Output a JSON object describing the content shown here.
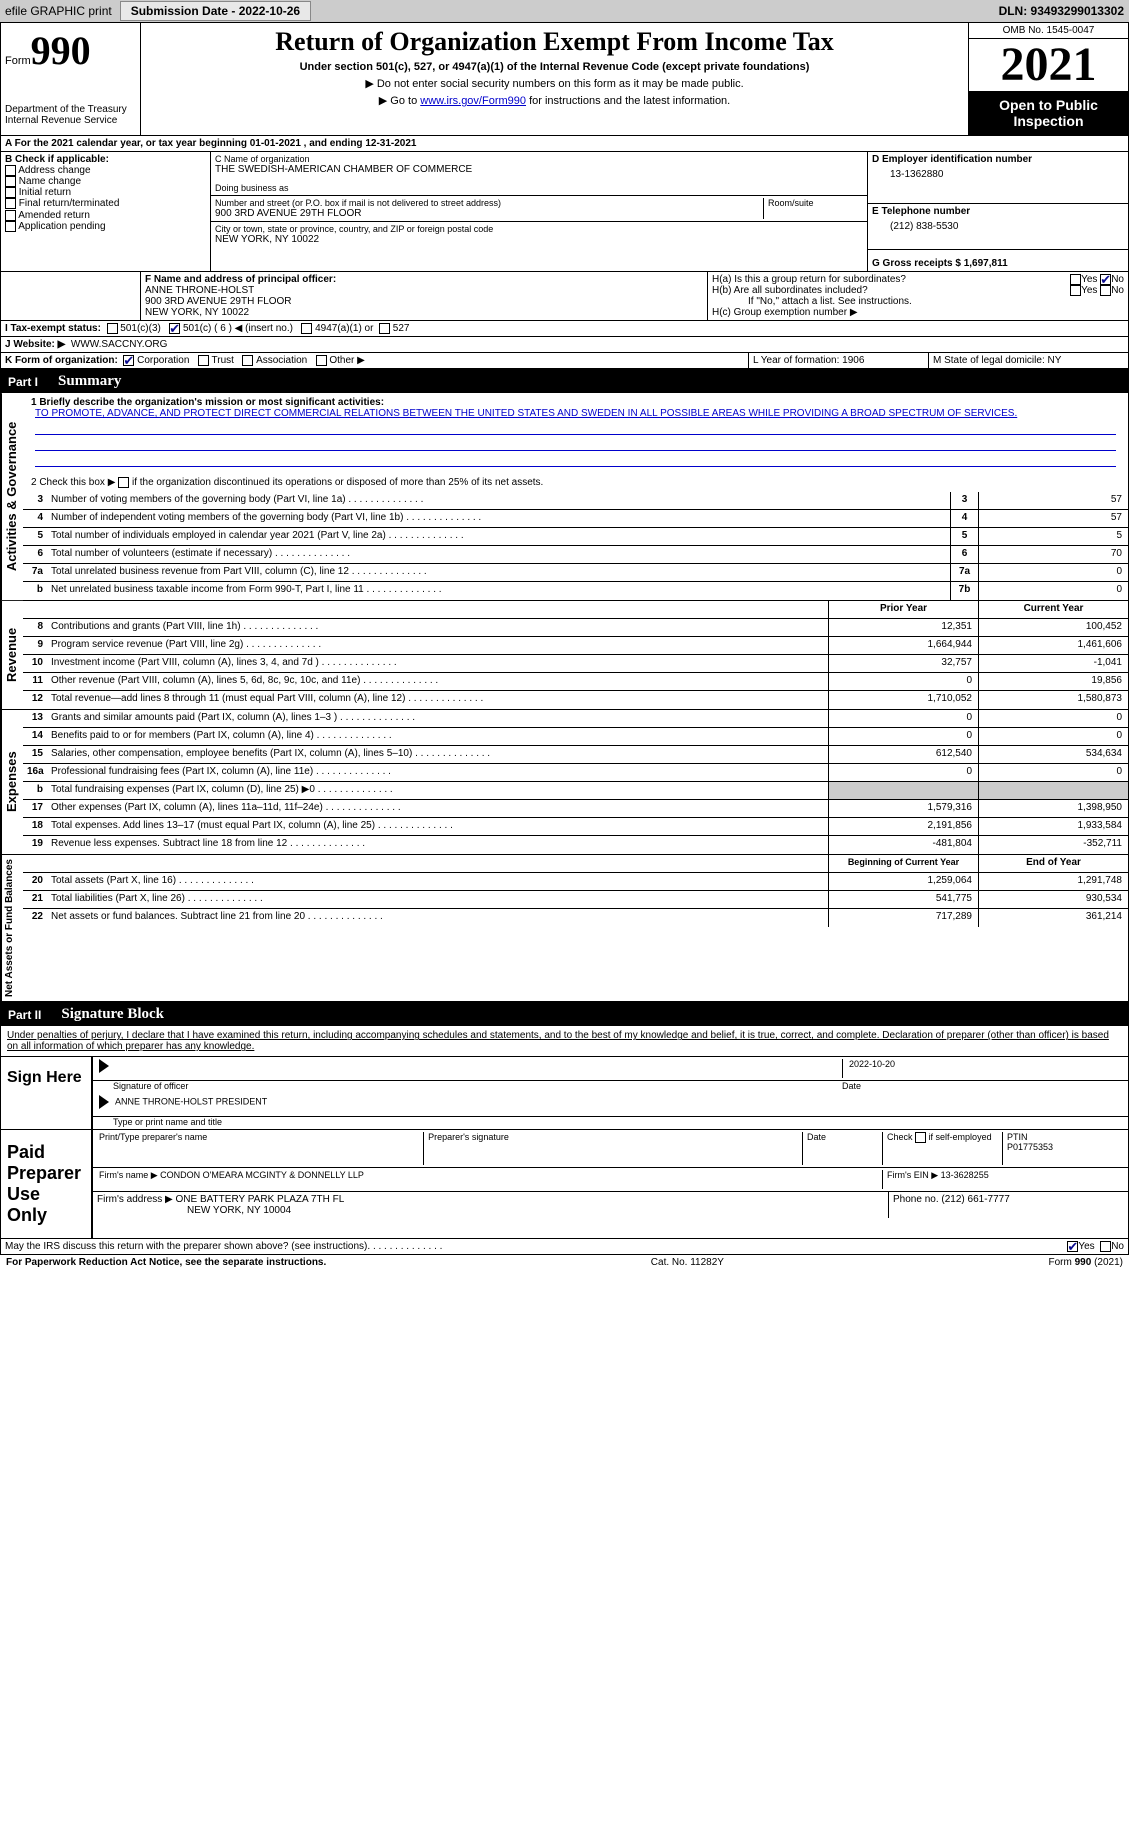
{
  "topbar": {
    "efile_label": "efile GRAPHIC print",
    "submission_label": "Submission Date - 2022-10-26",
    "dln_label": "DLN: 93493299013302"
  },
  "header": {
    "form_word": "Form",
    "form_num": "990",
    "dept": "Department of the Treasury Internal Revenue Service",
    "title": "Return of Organization Exempt From Income Tax",
    "subtitle": "Under section 501(c), 527, or 4947(a)(1) of the Internal Revenue Code (except private foundations)",
    "note1": "▶ Do not enter social security numbers on this form as it may be made public.",
    "note2_pre": "▶ Go to ",
    "note2_link": "www.irs.gov/Form990",
    "note2_post": " for instructions and the latest information.",
    "omb": "OMB No. 1545-0047",
    "year": "2021",
    "inspect": "Open to Public Inspection"
  },
  "line_a": {
    "text": "A For the 2021 calendar year, or tax year beginning 01-01-2021    , and ending 12-31-2021"
  },
  "box_b": {
    "title": "B Check if applicable:",
    "opts": [
      "Address change",
      "Name change",
      "Initial return",
      "Final return/terminated",
      "Amended return",
      "Application pending"
    ]
  },
  "box_c": {
    "name_label": "C Name of organization",
    "name": "THE SWEDISH-AMERICAN CHAMBER OF COMMERCE",
    "dba_label": "Doing business as",
    "addr_label": "Number and street (or P.O. box if mail is not delivered to street address)",
    "addr": "900 3RD AVENUE 29TH FLOOR",
    "room_label": "Room/suite",
    "city_label": "City or town, state or province, country, and ZIP or foreign postal code",
    "city": "NEW YORK, NY  10022"
  },
  "box_d": {
    "label": "D Employer identification number",
    "value": "13-1362880"
  },
  "box_e": {
    "label": "E Telephone number",
    "value": "(212) 838-5530"
  },
  "box_g": {
    "label": "G Gross receipts $ 1,697,811"
  },
  "box_f": {
    "label": "F  Name and address of principal officer:",
    "lines": [
      "ANNE THRONE-HOLST",
      "900 3RD AVENUE 29TH FLOOR",
      "NEW YORK, NY  10022"
    ]
  },
  "box_h": {
    "a_label": "H(a)  Is this a group return for subordinates?",
    "b_label": "H(b)  Are all subordinates included?",
    "b_note": "If \"No,\" attach a list. See instructions.",
    "c_label": "H(c)  Group exemption number ▶",
    "yes": "Yes",
    "no": "No"
  },
  "line_i": {
    "label": "I    Tax-exempt status:",
    "o1": "501(c)(3)",
    "o2": "501(c) ( 6 ) ◀ (insert no.)",
    "o3": "4947(a)(1) or",
    "o4": "527"
  },
  "line_j": {
    "label": "J   Website: ▶",
    "value": "WWW.SACCNY.ORG"
  },
  "line_k": {
    "label": "K Form of organization:",
    "o1": "Corporation",
    "o2": "Trust",
    "o3": "Association",
    "o4": "Other ▶"
  },
  "line_l": {
    "label": "L Year of formation: 1906"
  },
  "line_m": {
    "label": "M State of legal domicile: NY"
  },
  "parts": {
    "p1": {
      "num": "Part I",
      "title": "Summary"
    },
    "p2": {
      "num": "Part II",
      "title": "Signature Block"
    }
  },
  "summary": {
    "q1": "1  Briefly describe the organization's mission or most significant activities:",
    "mission": "TO PROMOTE, ADVANCE, AND PROTECT DIRECT COMMERCIAL RELATIONS BETWEEN THE UNITED STATES AND SWEDEN IN ALL POSSIBLE AREAS WHILE PROVIDING A BROAD SPECTRUM OF SERVICES.",
    "q2_pre": "2   Check this box ▶",
    "q2_post": "if the organization discontinued its operations or disposed of more than 25% of its net assets.",
    "rows_ag": [
      {
        "n": "3",
        "t": "Number of voting members of the governing body (Part VI, line 1a)",
        "box": "3",
        "v": "57"
      },
      {
        "n": "4",
        "t": "Number of independent voting members of the governing body (Part VI, line 1b)",
        "box": "4",
        "v": "57"
      },
      {
        "n": "5",
        "t": "Total number of individuals employed in calendar year 2021 (Part V, line 2a)",
        "box": "5",
        "v": "5"
      },
      {
        "n": "6",
        "t": "Total number of volunteers (estimate if necessary)",
        "box": "6",
        "v": "70"
      },
      {
        "n": "7a",
        "t": "Total unrelated business revenue from Part VIII, column (C), line 12",
        "box": "7a",
        "v": "0"
      },
      {
        "n": "b",
        "t": "Net unrelated business taxable income from Form 990-T, Part I, line 11",
        "box": "7b",
        "v": "0"
      }
    ],
    "col_headers": {
      "prior": "Prior Year",
      "current": "Current Year"
    },
    "rev": [
      {
        "n": "8",
        "t": "Contributions and grants (Part VIII, line 1h)",
        "p": "12,351",
        "c": "100,452"
      },
      {
        "n": "9",
        "t": "Program service revenue (Part VIII, line 2g)",
        "p": "1,664,944",
        "c": "1,461,606"
      },
      {
        "n": "10",
        "t": "Investment income (Part VIII, column (A), lines 3, 4, and 7d )",
        "p": "32,757",
        "c": "-1,041"
      },
      {
        "n": "11",
        "t": "Other revenue (Part VIII, column (A), lines 5, 6d, 8c, 9c, 10c, and 11e)",
        "p": "0",
        "c": "19,856"
      },
      {
        "n": "12",
        "t": "Total revenue—add lines 8 through 11 (must equal Part VIII, column (A), line 12)",
        "p": "1,710,052",
        "c": "1,580,873"
      }
    ],
    "exp": [
      {
        "n": "13",
        "t": "Grants and similar amounts paid (Part IX, column (A), lines 1–3 )",
        "p": "0",
        "c": "0"
      },
      {
        "n": "14",
        "t": "Benefits paid to or for members (Part IX, column (A), line 4)",
        "p": "0",
        "c": "0"
      },
      {
        "n": "15",
        "t": "Salaries, other compensation, employee benefits (Part IX, column (A), lines 5–10)",
        "p": "612,540",
        "c": "534,634"
      },
      {
        "n": "16a",
        "t": "Professional fundraising fees (Part IX, column (A), line 11e)",
        "p": "0",
        "c": "0"
      },
      {
        "n": "b",
        "t": "Total fundraising expenses (Part IX, column (D), line 25) ▶0",
        "p": "",
        "c": "",
        "shade": true
      },
      {
        "n": "17",
        "t": "Other expenses (Part IX, column (A), lines 11a–11d, 11f–24e)",
        "p": "1,579,316",
        "c": "1,398,950"
      },
      {
        "n": "18",
        "t": "Total expenses. Add lines 13–17 (must equal Part IX, column (A), line 25)",
        "p": "2,191,856",
        "c": "1,933,584"
      },
      {
        "n": "19",
        "t": "Revenue less expenses. Subtract line 18 from line 12",
        "p": "-481,804",
        "c": "-352,711"
      }
    ],
    "net_headers": {
      "b": "Beginning of Current Year",
      "e": "End of Year"
    },
    "net": [
      {
        "n": "20",
        "t": "Total assets (Part X, line 16)",
        "p": "1,259,064",
        "c": "1,291,748"
      },
      {
        "n": "21",
        "t": "Total liabilities (Part X, line 26)",
        "p": "541,775",
        "c": "930,534"
      },
      {
        "n": "22",
        "t": "Net assets or fund balances. Subtract line 21 from line 20",
        "p": "717,289",
        "c": "361,214"
      }
    ],
    "side_ag": "Activities & Governance",
    "side_rev": "Revenue",
    "side_exp": "Expenses",
    "side_net": "Net Assets or Fund Balances"
  },
  "penalties": "Under penalties of perjury, I declare that I have examined this return, including accompanying schedules and statements, and to the best of my knowledge and belief, it is true, correct, and complete. Declaration of preparer (other than officer) is based on all information of which preparer has any knowledge.",
  "sign": {
    "left": "Sign Here",
    "date": "2022-10-20",
    "sig_label": "Signature of officer",
    "date_label": "Date",
    "name": "ANNE THRONE-HOLST  PRESIDENT",
    "name_label": "Type or print name and title"
  },
  "paid": {
    "left1": "Paid",
    "left2": "Preparer",
    "left3": "Use Only",
    "h1": "Print/Type preparer's name",
    "h2": "Preparer's signature",
    "h3": "Date",
    "check_label": "Check",
    "self_emp": "if self-employed",
    "ptin_label": "PTIN",
    "ptin": "P01775353",
    "firm_name_label": "Firm's name    ▶",
    "firm_name": "CONDON O'MEARA MCGINTY & DONNELLY LLP",
    "firm_ein_label": "Firm's EIN ▶",
    "firm_ein": "13-3628255",
    "firm_addr_label": "Firm's address ▶",
    "firm_addr1": "ONE BATTERY PARK PLAZA 7TH FL",
    "firm_addr2": "NEW YORK, NY  10004",
    "phone_label": "Phone no.",
    "phone": "(212) 661-7777"
  },
  "discuss": {
    "text": "May the IRS discuss this return with the preparer shown above? (see instructions)",
    "yes": "Yes",
    "no": "No"
  },
  "footer": {
    "left": "For Paperwork Reduction Act Notice, see the separate instructions.",
    "mid": "Cat. No. 11282Y",
    "right": "Form 990 (2021)"
  }
}
